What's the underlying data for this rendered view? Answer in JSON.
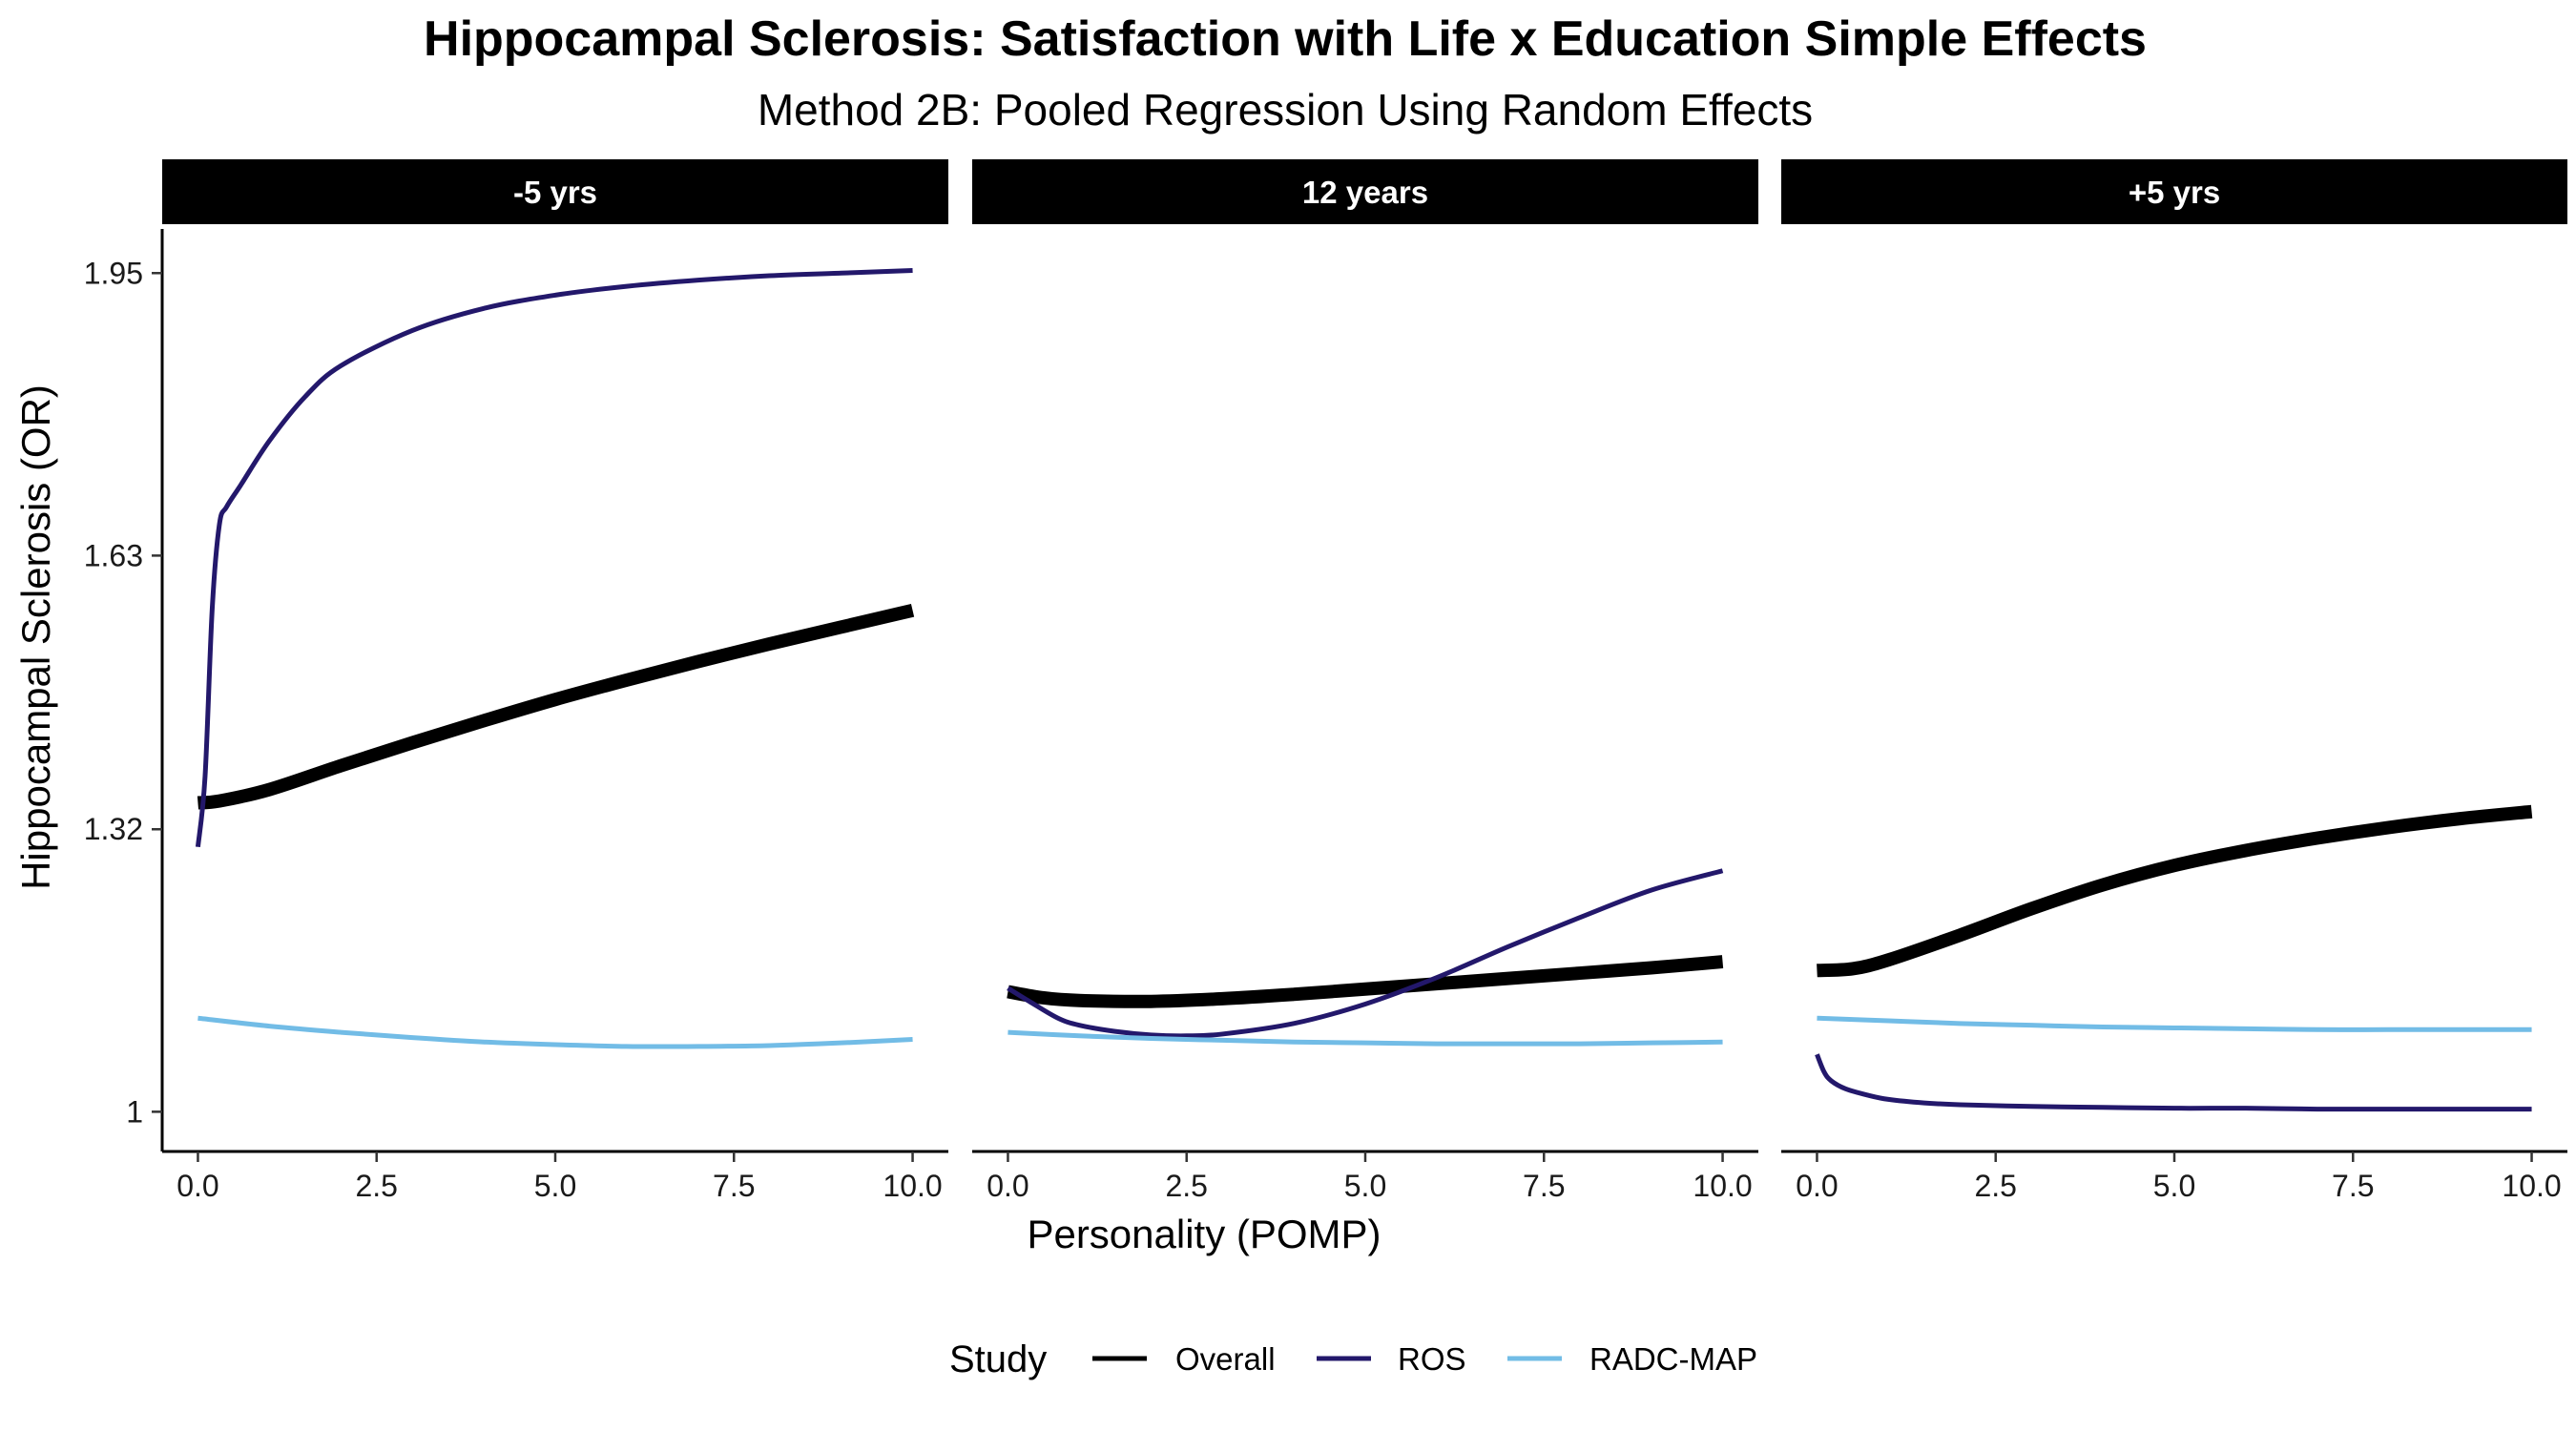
{
  "chart_data": {
    "type": "line",
    "title": "Hippocampal Sclerosis: Satisfaction with Life x Education Simple Effects",
    "subtitle": "Method 2B: Pooled Regression Using Random Effects",
    "xlabel": "Personality (POMP)",
    "ylabel": "Hippocampal Sclerosis (OR)",
    "xlim": [
      -0.5,
      10.5
    ],
    "ylim": [
      0.955,
      2.0
    ],
    "x_ticks": [
      0,
      2.5,
      5,
      7.5,
      10
    ],
    "x_tick_labels": [
      "0.0",
      "2.5",
      "5.0",
      "7.5",
      "10.0"
    ],
    "y_ticks": [
      1.0,
      1.32,
      1.63,
      1.95
    ],
    "y_tick_labels": [
      "1",
      "1.32",
      "1.63",
      "1.95"
    ],
    "legend": {
      "title": "Study",
      "position": "bottom",
      "entries": [
        {
          "label": "Overall",
          "color": "#000000"
        },
        {
          "label": "ROS",
          "color": "#23186b"
        },
        {
          "label": "RADC-MAP",
          "color": "#72bce6"
        }
      ]
    },
    "panels": [
      {
        "label": "-5 yrs",
        "series": [
          {
            "name": "Overall",
            "color": "#000000",
            "weight": "thick",
            "x": [
              0,
              0.3,
              1,
              2,
              3,
              4,
              5,
              6,
              7,
              8,
              9,
              10
            ],
            "y": [
              1.35,
              1.352,
              1.365,
              1.392,
              1.418,
              1.443,
              1.467,
              1.489,
              1.51,
              1.53,
              1.549,
              1.568
            ]
          },
          {
            "name": "ROS",
            "color": "#23186b",
            "weight": "normal",
            "x": [
              0,
              0.1,
              0.2,
              0.3,
              0.4,
              0.6,
              1,
              1.5,
              2,
              3,
              4,
              5,
              6,
              7,
              8,
              9,
              10
            ],
            "y": [
              1.3,
              1.38,
              1.57,
              1.665,
              1.685,
              1.71,
              1.76,
              1.81,
              1.845,
              1.885,
              1.91,
              1.925,
              1.935,
              1.942,
              1.947,
              1.95,
              1.953
            ]
          },
          {
            "name": "RADC-MAP",
            "color": "#72bce6",
            "weight": "normal",
            "x": [
              0,
              1,
              2,
              3,
              4,
              5,
              6,
              7,
              8,
              9,
              10
            ],
            "y": [
              1.106,
              1.097,
              1.09,
              1.084,
              1.079,
              1.076,
              1.074,
              1.074,
              1.075,
              1.078,
              1.082
            ]
          }
        ]
      },
      {
        "label": "12 years",
        "series": [
          {
            "name": "Overall",
            "color": "#000000",
            "weight": "thick",
            "x": [
              0,
              0.5,
              1,
              2,
              3,
              4,
              5,
              6,
              7,
              8,
              9,
              10
            ],
            "y": [
              1.136,
              1.129,
              1.126,
              1.125,
              1.128,
              1.133,
              1.139,
              1.145,
              1.151,
              1.157,
              1.163,
              1.17
            ]
          },
          {
            "name": "ROS",
            "color": "#23186b",
            "weight": "normal",
            "x": [
              0,
              0.3,
              0.7,
              1,
              1.5,
              2,
              2.5,
              3,
              4,
              5,
              6,
              7,
              8,
              9,
              10
            ],
            "y": [
              1.14,
              1.125,
              1.106,
              1.098,
              1.091,
              1.087,
              1.086,
              1.088,
              1.1,
              1.122,
              1.152,
              1.187,
              1.22,
              1.251,
              1.273
            ]
          },
          {
            "name": "RADC-MAP",
            "color": "#72bce6",
            "weight": "normal",
            "x": [
              0,
              1,
              2,
              3,
              4,
              5,
              6,
              7,
              8,
              9,
              10
            ],
            "y": [
              1.09,
              1.086,
              1.083,
              1.081,
              1.079,
              1.078,
              1.077,
              1.077,
              1.077,
              1.078,
              1.079
            ]
          }
        ]
      },
      {
        "label": "+5 yrs",
        "series": [
          {
            "name": "Overall",
            "color": "#000000",
            "weight": "thick",
            "x": [
              0,
              0.5,
              1,
              2,
              3,
              4,
              5,
              6,
              7,
              8,
              9,
              10
            ],
            "y": [
              1.16,
              1.162,
              1.172,
              1.2,
              1.23,
              1.257,
              1.279,
              1.296,
              1.31,
              1.322,
              1.332,
              1.34
            ]
          },
          {
            "name": "ROS",
            "color": "#23186b",
            "weight": "normal",
            "x": [
              0,
              0.1,
              0.2,
              0.4,
              0.7,
              1,
              1.5,
              2,
              3,
              4,
              5,
              6,
              7,
              8,
              9,
              10
            ],
            "y": [
              1.065,
              1.045,
              1.035,
              1.026,
              1.019,
              1.014,
              1.01,
              1.008,
              1.006,
              1.005,
              1.004,
              1.004,
              1.003,
              1.003,
              1.003,
              1.003
            ]
          },
          {
            "name": "RADC-MAP",
            "color": "#72bce6",
            "weight": "normal",
            "x": [
              0,
              1,
              2,
              3,
              4,
              5,
              6,
              7,
              8,
              9,
              10
            ],
            "y": [
              1.106,
              1.103,
              1.1,
              1.098,
              1.096,
              1.095,
              1.094,
              1.093,
              1.093,
              1.093,
              1.093
            ]
          }
        ]
      }
    ]
  }
}
